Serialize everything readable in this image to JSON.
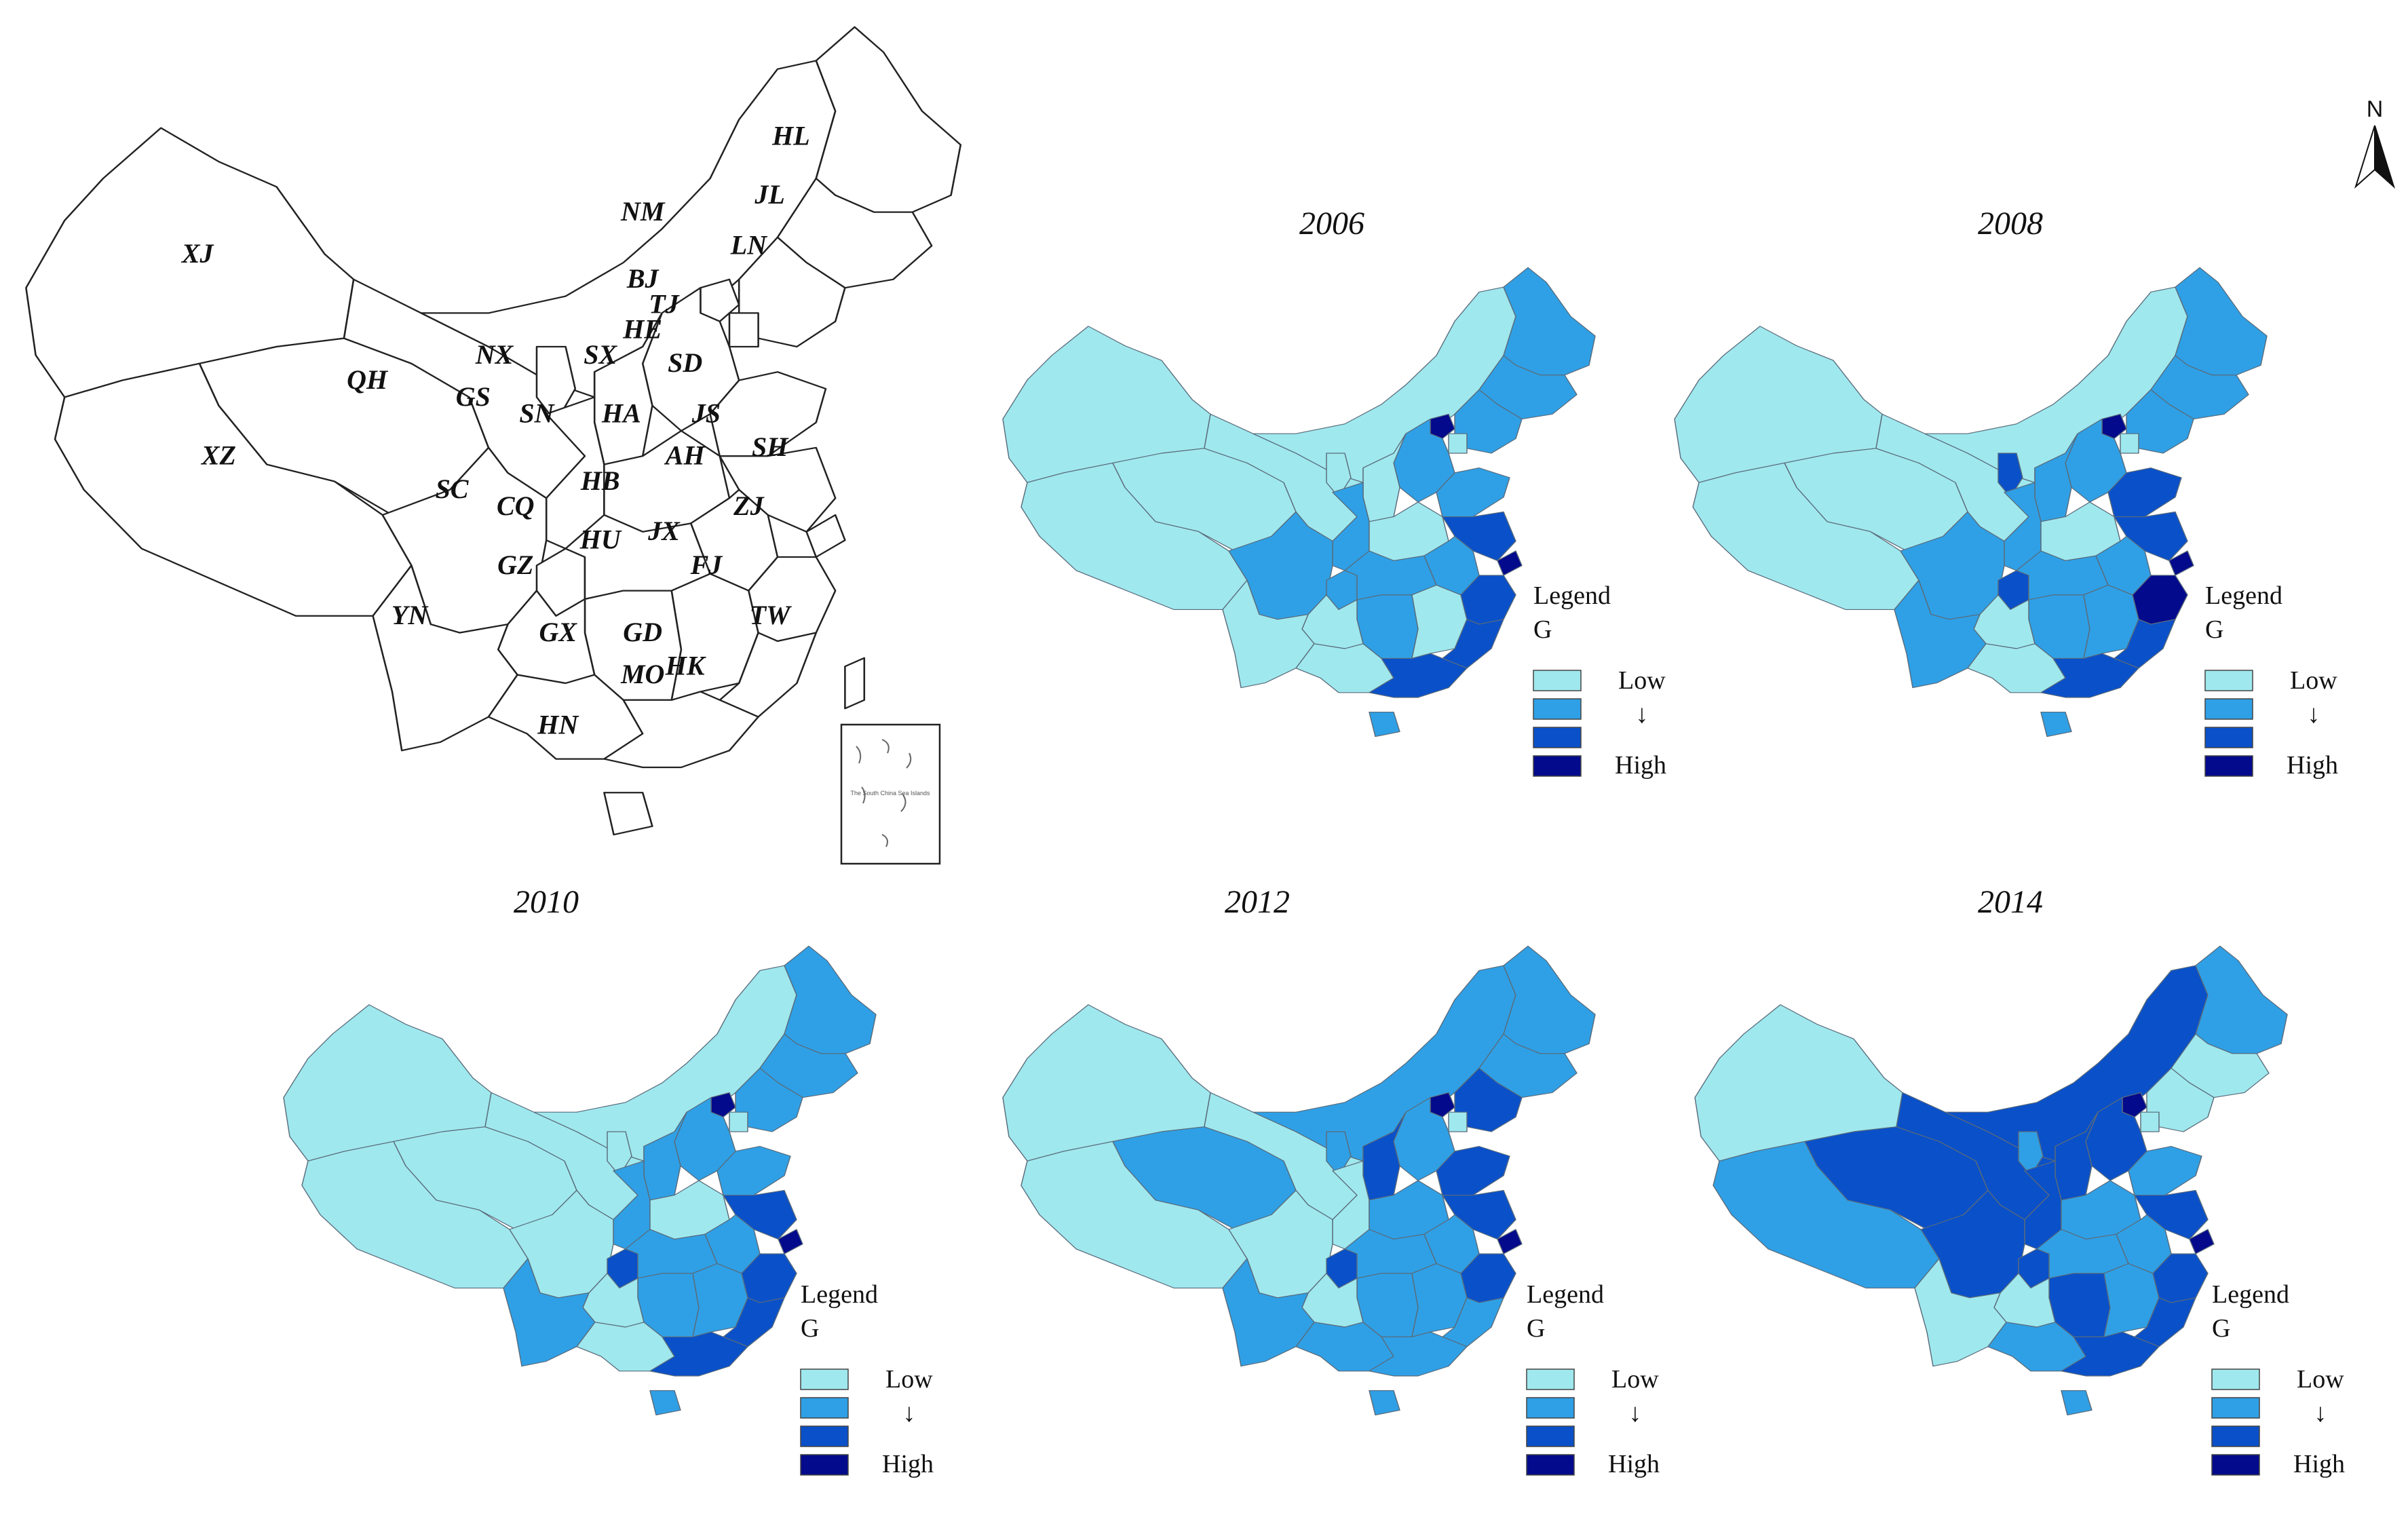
{
  "reference_map": {
    "province_labels": [
      "XJ",
      "XZ",
      "QH",
      "GS",
      "NM",
      "HL",
      "JL",
      "LN",
      "BJ",
      "TJ",
      "HE",
      "SX",
      "SD",
      "NX",
      "SN",
      "HA",
      "JS",
      "AH",
      "SH",
      "SC",
      "CQ",
      "HB",
      "HU",
      "JX",
      "ZJ",
      "FJ",
      "GZ",
      "YN",
      "GX",
      "GD",
      "HK",
      "MO",
      "HN",
      "TW"
    ],
    "inset_caption": "The South China Sea Islands"
  },
  "north_arrow": {
    "label": "N"
  },
  "legend": {
    "title": "Legend",
    "variable": "G",
    "low": "Low",
    "high": "High",
    "arrow": "↓",
    "classes": [
      {
        "level": 1,
        "color": "#9fe8ee"
      },
      {
        "level": 2,
        "color": "#2fa0e6"
      },
      {
        "level": 3,
        "color": "#0a50c8"
      },
      {
        "level": 4,
        "color": "#040a8c"
      }
    ]
  },
  "panels": [
    {
      "year": "2006",
      "classes": {
        "XJ": 1,
        "XZ": 1,
        "QH": 1,
        "GS": 1,
        "NM": 1,
        "HL": 2,
        "JL": 2,
        "LN": 2,
        "BJ": 4,
        "TJ": 1,
        "HE": 2,
        "SX": 1,
        "SD": 2,
        "NX": 1,
        "SN": 2,
        "HA": 1,
        "JS": 3,
        "AH": 2,
        "SH": 4,
        "SC": 2,
        "CQ": 2,
        "HB": 2,
        "HU": 2,
        "JX": 1,
        "ZJ": 3,
        "FJ": 3,
        "GZ": 1,
        "YN": 1,
        "GX": 1,
        "GD": 3,
        "HN": 2
      }
    },
    {
      "year": "2008",
      "classes": {
        "XJ": 1,
        "XZ": 1,
        "QH": 1,
        "GS": 1,
        "NM": 1,
        "HL": 2,
        "JL": 2,
        "LN": 2,
        "BJ": 4,
        "TJ": 1,
        "HE": 2,
        "SX": 2,
        "SD": 3,
        "NX": 3,
        "SN": 2,
        "HA": 1,
        "JS": 3,
        "AH": 2,
        "SH": 4,
        "SC": 2,
        "CQ": 3,
        "HB": 2,
        "HU": 2,
        "JX": 2,
        "ZJ": 4,
        "FJ": 3,
        "GZ": 1,
        "YN": 2,
        "GX": 1,
        "GD": 3,
        "HN": 2
      }
    },
    {
      "year": "2010",
      "classes": {
        "XJ": 1,
        "XZ": 1,
        "QH": 1,
        "GS": 1,
        "NM": 1,
        "HL": 2,
        "JL": 2,
        "LN": 2,
        "BJ": 4,
        "TJ": 1,
        "HE": 2,
        "SX": 2,
        "SD": 2,
        "NX": 1,
        "SN": 2,
        "HA": 1,
        "JS": 3,
        "AH": 2,
        "SH": 4,
        "SC": 1,
        "CQ": 3,
        "HB": 2,
        "HU": 2,
        "JX": 2,
        "ZJ": 3,
        "FJ": 3,
        "GZ": 1,
        "YN": 2,
        "GX": 1,
        "GD": 3,
        "HN": 2
      }
    },
    {
      "year": "2012",
      "classes": {
        "XJ": 1,
        "XZ": 1,
        "QH": 2,
        "GS": 1,
        "NM": 2,
        "HL": 2,
        "JL": 2,
        "LN": 3,
        "BJ": 4,
        "TJ": 1,
        "HE": 2,
        "SX": 3,
        "SD": 3,
        "NX": 2,
        "SN": 1,
        "HA": 2,
        "JS": 3,
        "AH": 2,
        "SH": 4,
        "SC": 1,
        "CQ": 3,
        "HB": 2,
        "HU": 2,
        "JX": 2,
        "ZJ": 3,
        "FJ": 2,
        "GZ": 1,
        "YN": 2,
        "GX": 2,
        "GD": 2,
        "HN": 2
      }
    },
    {
      "year": "2014",
      "classes": {
        "XJ": 1,
        "XZ": 2,
        "QH": 3,
        "GS": 3,
        "NM": 3,
        "HL": 2,
        "JL": 1,
        "LN": 1,
        "BJ": 4,
        "TJ": 1,
        "HE": 3,
        "SX": 3,
        "SD": 2,
        "NX": 2,
        "SN": 3,
        "HA": 2,
        "JS": 3,
        "AH": 2,
        "SH": 4,
        "SC": 3,
        "CQ": 3,
        "HB": 2,
        "HU": 3,
        "JX": 2,
        "ZJ": 3,
        "FJ": 3,
        "GZ": 1,
        "YN": 1,
        "GX": 2,
        "GD": 3,
        "HN": 2
      }
    }
  ]
}
